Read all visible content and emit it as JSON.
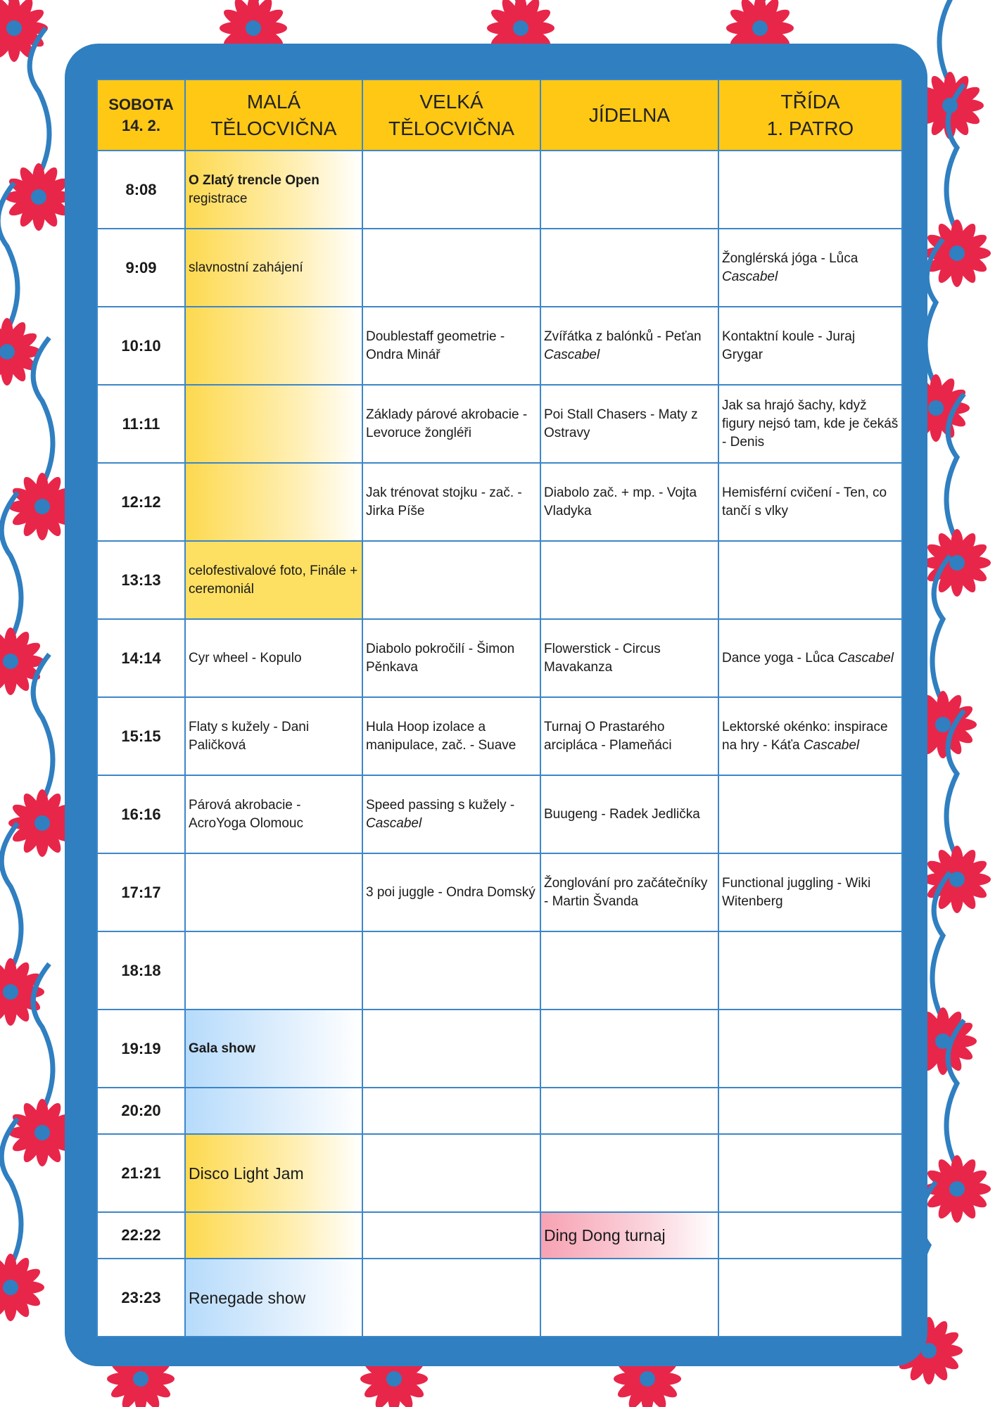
{
  "colors": {
    "frame": "#2f7fc1",
    "header": "#fec815",
    "flower": "#e8264a",
    "stem": "#2f7fc1",
    "yellow": "#fdd94f",
    "blue": "#b6dbfb",
    "pink": "#f7a2b3"
  },
  "header": {
    "day": [
      "SOBOTA",
      "14. 2."
    ],
    "rooms": [
      [
        "MALÁ",
        "TĚLOCVIČNA"
      ],
      [
        "VELKÁ",
        "TĚLOCVIČNA"
      ],
      [
        "JÍDELNA"
      ],
      [
        "TŘÍDA",
        "1. PATRO"
      ]
    ]
  },
  "rows": [
    {
      "time": "8:08",
      "cells": [
        {
          "bg": "yel",
          "parts": [
            {
              "t": "O Zlatý trencle Open",
              "b": true,
              "br": true
            },
            {
              "t": "registrace"
            }
          ]
        },
        {},
        {},
        {}
      ]
    },
    {
      "time": "9:09",
      "cells": [
        {
          "bg": "yel",
          "parts": [
            {
              "t": "slavnostní zahájení"
            }
          ]
        },
        {},
        {},
        {
          "parts": [
            {
              "t": "Žonglérská jóga - Lůca "
            },
            {
              "t": "Cascabel",
              "i": true
            }
          ]
        }
      ]
    },
    {
      "time": "10:10",
      "cells": [
        {
          "bg": "yel"
        },
        {
          "parts": [
            {
              "t": "Doublestaff geometrie - Ondra Minář"
            }
          ]
        },
        {
          "parts": [
            {
              "t": "Zvířátka z balónků - Peťan "
            },
            {
              "t": "Cascabel",
              "i": true
            }
          ]
        },
        {
          "parts": [
            {
              "t": "Kontaktní koule - Juraj Grygar"
            }
          ]
        }
      ]
    },
    {
      "time": "11:11",
      "cells": [
        {
          "bg": "yel"
        },
        {
          "parts": [
            {
              "t": "Základy párové akrobacie - Levoruce žongléři"
            }
          ]
        },
        {
          "parts": [
            {
              "t": "Poi Stall Chasers - Maty z Ostravy"
            }
          ]
        },
        {
          "parts": [
            {
              "t": "Jak sa hrajó šachy, když figury nejsó tam, kde je čekáš  - Denis"
            }
          ]
        }
      ]
    },
    {
      "time": "12:12",
      "cells": [
        {
          "bg": "yel"
        },
        {
          "parts": [
            {
              "t": "Jak trénovat stojku - zač. - Jirka Píše"
            }
          ]
        },
        {
          "parts": [
            {
              "t": "Diabolo zač. + mp. - Vojta Vladyka"
            }
          ]
        },
        {
          "parts": [
            {
              "t": "Hemisférní cvičení - Ten, co tančí s vlky"
            }
          ]
        }
      ]
    },
    {
      "time": "13:13",
      "cells": [
        {
          "bg": "yelsolid",
          "parts": [
            {
              "t": "celofestivalové foto, Finále + ceremoniál"
            }
          ]
        },
        {},
        {},
        {}
      ]
    },
    {
      "time": "14:14",
      "cells": [
        {
          "parts": [
            {
              "t": "Cyr wheel - Kopulo"
            }
          ]
        },
        {
          "parts": [
            {
              "t": "Diabolo pokročilí - Šimon Pěnkava"
            }
          ]
        },
        {
          "parts": [
            {
              "t": "Flowerstick - Circus Mavakanza"
            }
          ]
        },
        {
          "parts": [
            {
              "t": "Dance yoga - Lůca "
            },
            {
              "t": "Cascabel",
              "i": true
            }
          ]
        }
      ]
    },
    {
      "time": "15:15",
      "cells": [
        {
          "parts": [
            {
              "t": "Flaty s kužely - Dani Paličková"
            }
          ]
        },
        {
          "parts": [
            {
              "t": "Hula Hoop izolace a manipulace, zač. - Suave"
            }
          ]
        },
        {
          "parts": [
            {
              "t": "Turnaj O Prastarého arcipláca - Plameňáci"
            }
          ]
        },
        {
          "parts": [
            {
              "t": "Lektorské okénko: inspirace na hry - Káťa "
            },
            {
              "t": "Cascabel",
              "i": true
            }
          ]
        }
      ]
    },
    {
      "time": "16:16",
      "cells": [
        {
          "parts": [
            {
              "t": "Párová akrobacie - AcroYoga Olomouc"
            }
          ]
        },
        {
          "parts": [
            {
              "t": "Speed passing s kužely - "
            },
            {
              "t": "Cascabel",
              "i": true
            }
          ]
        },
        {
          "parts": [
            {
              "t": "Buugeng - Radek Jedlička"
            }
          ]
        },
        {}
      ]
    },
    {
      "time": "17:17",
      "cells": [
        {},
        {
          "parts": [
            {
              "t": "3 poi juggle - Ondra Domský"
            }
          ]
        },
        {
          "parts": [
            {
              "t": "Žonglování pro začátečníky - Martin Švanda"
            }
          ]
        },
        {
          "parts": [
            {
              "t": "Functional juggling - Wiki Witenberg"
            }
          ]
        }
      ]
    },
    {
      "time": "18:18",
      "cells": [
        {},
        {},
        {},
        {}
      ]
    },
    {
      "time": "19:19",
      "cells": [
        {
          "bg": "blue",
          "parts": [
            {
              "t": "Gala show",
              "b": true
            }
          ]
        },
        {},
        {},
        {}
      ]
    },
    {
      "time": "20:20",
      "short": true,
      "cells": [
        {
          "bg": "blue"
        },
        {},
        {},
        {}
      ]
    },
    {
      "time": "21:21",
      "cells": [
        {
          "bg": "yel",
          "big": true,
          "parts": [
            {
              "t": "Disco Light Jam"
            }
          ]
        },
        {},
        {},
        {}
      ]
    },
    {
      "time": "22:22",
      "short": true,
      "cells": [
        {
          "bg": "yel"
        },
        {},
        {
          "bg": "pink",
          "big": true,
          "parts": [
            {
              "t": "Ding Dong turnaj"
            }
          ]
        },
        {}
      ]
    },
    {
      "time": "23:23",
      "cells": [
        {
          "bg": "blue",
          "big": true,
          "parts": [
            {
              "t": "Renegade show"
            }
          ]
        },
        {},
        {},
        {}
      ]
    }
  ]
}
